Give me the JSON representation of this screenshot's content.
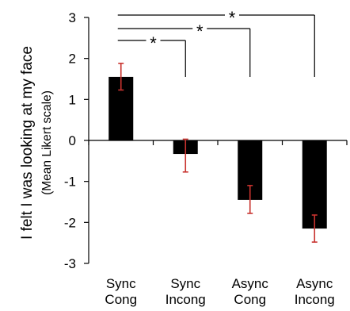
{
  "chart_data": {
    "type": "bar",
    "categories": [
      [
        "Sync",
        "Cong"
      ],
      [
        "Sync",
        "Incong"
      ],
      [
        "Async",
        "Cong"
      ],
      [
        "Async",
        "Incong"
      ]
    ],
    "values": [
      1.55,
      -0.33,
      -1.45,
      -2.15
    ],
    "error_low": [
      1.23,
      -0.77,
      -1.78,
      -2.48
    ],
    "error_high": [
      1.88,
      0.03,
      -1.1,
      -1.82
    ],
    "ylabel": "I felt I was looking at my face",
    "ylabel_sub": "(Mean Likert scale)",
    "ylim": [
      -3,
      3
    ],
    "yticks": [
      3,
      2,
      1,
      0,
      -1,
      -2,
      -3
    ],
    "bar_color": "#000000",
    "error_color": "#c8332f",
    "grid": false,
    "significance": [
      {
        "from": 0,
        "to": 1,
        "label": "*"
      },
      {
        "from": 0,
        "to": 2,
        "label": "*"
      },
      {
        "from": 0,
        "to": 3,
        "label": "*"
      }
    ]
  }
}
